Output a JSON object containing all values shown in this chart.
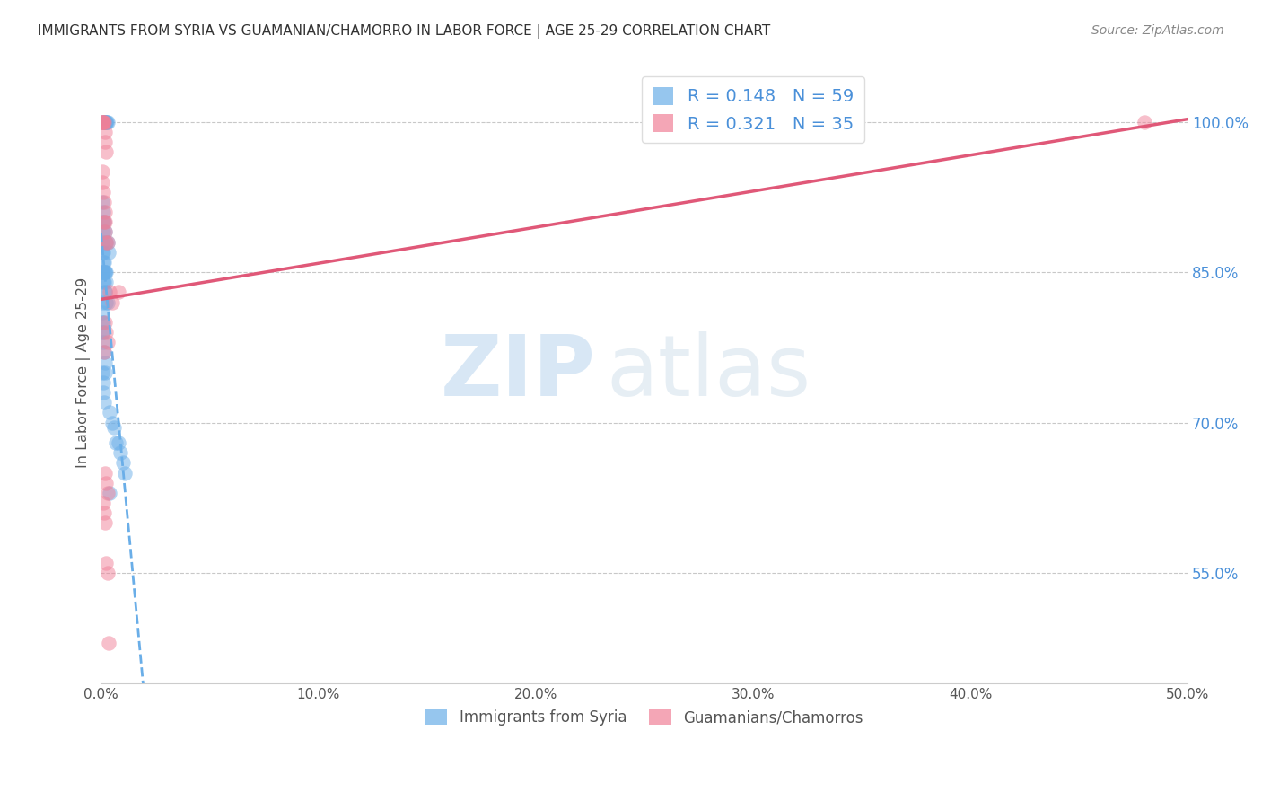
{
  "title": "IMMIGRANTS FROM SYRIA VS GUAMANIAN/CHAMORRO IN LABOR FORCE | AGE 25-29 CORRELATION CHART",
  "source": "Source: ZipAtlas.com",
  "ylabel": "In Labor Force | Age 25-29",
  "xlim": [
    0.0,
    0.5
  ],
  "ylim": [
    0.44,
    1.06
  ],
  "xticks": [
    0.0,
    0.1,
    0.2,
    0.3,
    0.4,
    0.5
  ],
  "xtick_labels": [
    "0.0%",
    "10.0%",
    "20.0%",
    "30.0%",
    "40.0%",
    "50.0%"
  ],
  "yticks": [
    0.55,
    0.7,
    0.85,
    1.0
  ],
  "ytick_labels": [
    "55.0%",
    "70.0%",
    "85.0%",
    "100.0%"
  ],
  "blue_color": "#6aaee8",
  "pink_color": "#f08098",
  "blue_line_color": "#6aaee8",
  "pink_line_color": "#e05878",
  "watermark_zip": "ZIP",
  "watermark_atlas": "atlas",
  "background_color": "#ffffff",
  "grid_color": "#c8c8c8",
  "title_color": "#333333",
  "axis_label_color": "#555555",
  "ytick_color": "#4a90d9",
  "xtick_color": "#555555",
  "source_color": "#888888",
  "legend_blue_text": "R = 0.148   N = 59",
  "legend_pink_text": "R = 0.321   N = 35",
  "legend_label1": "Immigrants from Syria",
  "legend_label2": "Guamanians/Chamorros",
  "blue_R": 0.148,
  "blue_N": 59,
  "pink_R": 0.321,
  "pink_N": 35,
  "blue_x": [
    0.0008,
    0.0012,
    0.0015,
    0.0018,
    0.002,
    0.0022,
    0.0025,
    0.0028,
    0.003,
    0.0005,
    0.001,
    0.0015,
    0.0008,
    0.0012,
    0.002,
    0.0025,
    0.003,
    0.0035,
    0.0005,
    0.0008,
    0.001,
    0.0012,
    0.0015,
    0.0018,
    0.002,
    0.0022,
    0.0025,
    0.0005,
    0.0008,
    0.001,
    0.0012,
    0.0015,
    0.0018,
    0.002,
    0.0025,
    0.003,
    0.0005,
    0.0008,
    0.001,
    0.0005,
    0.0008,
    0.001,
    0.0012,
    0.0015,
    0.0018,
    0.002,
    0.0008,
    0.001,
    0.0012,
    0.0015,
    0.004,
    0.005,
    0.006,
    0.007,
    0.008,
    0.009,
    0.01,
    0.011,
    0.004
  ],
  "blue_y": [
    1.0,
    1.0,
    1.0,
    1.0,
    1.0,
    1.0,
    1.0,
    1.0,
    1.0,
    0.92,
    0.91,
    0.9,
    0.9,
    0.89,
    0.89,
    0.88,
    0.88,
    0.87,
    0.88,
    0.87,
    0.87,
    0.86,
    0.86,
    0.85,
    0.85,
    0.85,
    0.84,
    0.85,
    0.85,
    0.85,
    0.84,
    0.84,
    0.83,
    0.83,
    0.82,
    0.82,
    0.82,
    0.81,
    0.8,
    0.8,
    0.79,
    0.79,
    0.78,
    0.77,
    0.76,
    0.75,
    0.75,
    0.74,
    0.73,
    0.72,
    0.71,
    0.7,
    0.695,
    0.68,
    0.68,
    0.67,
    0.66,
    0.65,
    0.63
  ],
  "pink_x": [
    0.0005,
    0.0008,
    0.001,
    0.0012,
    0.0015,
    0.0018,
    0.002,
    0.0025,
    0.0005,
    0.0008,
    0.0012,
    0.0015,
    0.0018,
    0.002,
    0.0015,
    0.002,
    0.0025,
    0.003,
    0.004,
    0.005,
    0.002,
    0.0025,
    0.003,
    0.0015,
    0.008,
    0.002,
    0.0025,
    0.003,
    0.001,
    0.0015,
    0.002,
    0.0025,
    0.003,
    0.0035,
    0.48
  ],
  "pink_y": [
    1.0,
    1.0,
    1.0,
    1.0,
    1.0,
    0.99,
    0.98,
    0.97,
    0.95,
    0.94,
    0.93,
    0.92,
    0.91,
    0.9,
    0.9,
    0.89,
    0.88,
    0.88,
    0.83,
    0.82,
    0.8,
    0.79,
    0.78,
    0.77,
    0.83,
    0.65,
    0.64,
    0.63,
    0.62,
    0.61,
    0.6,
    0.56,
    0.55,
    0.48,
    1.0
  ]
}
